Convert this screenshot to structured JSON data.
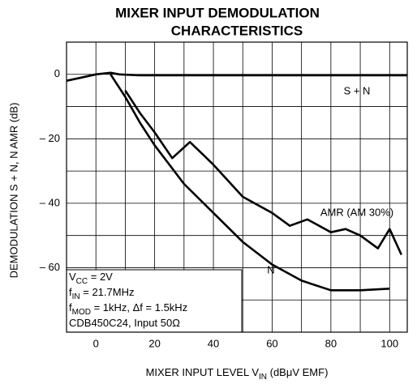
{
  "chart_data": {
    "type": "line",
    "title": [
      "MIXER INPUT DEMODULATION",
      "CHARACTERISTICS"
    ],
    "xlabel": {
      "main": "MIXER INPUT LEVEL   V",
      "sub": "IN",
      "rest": "   (dBμV EMF)"
    },
    "ylabel": "DEMODULATION S + N, N AMR   (dB)",
    "xlim": [
      -10,
      106
    ],
    "ylim": [
      -80,
      10
    ],
    "xticks": [
      0,
      20,
      40,
      60,
      80,
      100
    ],
    "yticks": [
      0,
      {
        "value": -20,
        "label": "– 20"
      },
      {
        "value": -40,
        "label": "– 40"
      },
      {
        "value": -60,
        "label": "– 60"
      }
    ],
    "minor_xticks": [
      10,
      30,
      50,
      70,
      90
    ],
    "minor_yticks": [
      -10,
      -30,
      -50,
      -70
    ],
    "grid": true,
    "series": [
      {
        "name": "S + N",
        "color": "#000000",
        "x": [
          -10,
          -5,
          0,
          5,
          8,
          15,
          40,
          106
        ],
        "values": [
          -2,
          -1,
          0,
          0.5,
          0,
          -0.3,
          -0.3,
          -0.3
        ]
      },
      {
        "name": "N",
        "color": "#000000",
        "x": [
          5,
          10,
          15,
          20,
          30,
          40,
          50,
          60,
          70,
          80,
          90,
          100
        ],
        "values": [
          0,
          -7,
          -15,
          -22,
          -34,
          -43,
          -52,
          -59,
          -64,
          -67,
          -67,
          -66.5
        ]
      },
      {
        "name": "AMR (AM 30%)",
        "color": "#000000",
        "x": [
          10,
          15,
          20,
          26,
          32,
          40,
          50,
          60,
          66,
          72,
          80,
          85,
          90,
          96,
          100,
          104
        ],
        "values": [
          -5,
          -12,
          -18,
          -26,
          -21,
          -28,
          -38,
          -43,
          -47,
          -45,
          -49,
          -48,
          -50,
          -54,
          -48,
          -56
        ]
      }
    ],
    "conditions": [
      {
        "main": "V",
        "sub": "CC",
        "rest": " = 2V"
      },
      {
        "main": "f",
        "sub": "IN",
        "rest": " = 21.7MHz"
      },
      {
        "main": "f",
        "sub": "MOD",
        "rest": " = 1kHz, Δf = 1.5kHz"
      },
      {
        "main": "CDB450C24, Input 50Ω",
        "sub": "",
        "rest": ""
      }
    ]
  }
}
